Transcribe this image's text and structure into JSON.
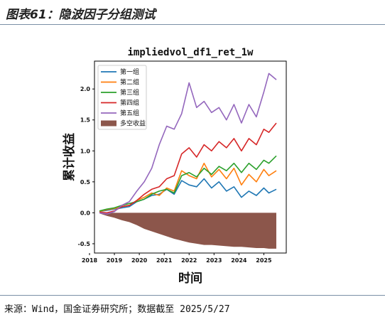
{
  "figure_title": "图表61：隐波因子分组测试",
  "source_note": "来源：Wind，国金证券研究所；数据截至 2025/5/27",
  "chart_data": {
    "type": "line",
    "title": "impliedvol_df1_ret_1w",
    "xlabel": "时间",
    "ylabel": "累计收益",
    "x_ticks": [
      "2018",
      "2019",
      "2020",
      "2021",
      "2022",
      "2023",
      "2024",
      "2025"
    ],
    "y_ticks": [
      "-0.5",
      "0.0",
      "0.5",
      "1.0",
      "1.5",
      "2.0"
    ],
    "ylim": [
      -0.65,
      2.45
    ],
    "xlim": [
      2018.2,
      2025.9
    ],
    "grid": false,
    "legend_position": "top-left",
    "x": [
      2018.4,
      2018.7,
      2019.0,
      2019.3,
      2019.6,
      2019.9,
      2020.2,
      2020.5,
      2020.8,
      2021.1,
      2021.4,
      2021.7,
      2022.0,
      2022.3,
      2022.6,
      2022.9,
      2023.2,
      2023.5,
      2023.8,
      2024.1,
      2024.4,
      2024.7,
      2025.0,
      2025.2,
      2025.5
    ],
    "series": [
      {
        "name": "第一组",
        "color": "#1f77b4",
        "values": [
          0.02,
          0.04,
          0.06,
          0.08,
          0.1,
          0.18,
          0.22,
          0.28,
          0.3,
          0.38,
          0.3,
          0.52,
          0.45,
          0.42,
          0.55,
          0.4,
          0.5,
          0.35,
          0.42,
          0.25,
          0.35,
          0.28,
          0.4,
          0.32,
          0.38
        ]
      },
      {
        "name": "第二组",
        "color": "#ff7f0e",
        "values": [
          0.02,
          0.05,
          0.07,
          0.1,
          0.12,
          0.2,
          0.25,
          0.32,
          0.28,
          0.4,
          0.35,
          0.68,
          0.6,
          0.55,
          0.8,
          0.58,
          0.7,
          0.55,
          0.72,
          0.45,
          0.62,
          0.5,
          0.7,
          0.6,
          0.68
        ]
      },
      {
        "name": "第三组",
        "color": "#2ca02c",
        "values": [
          0.03,
          0.06,
          0.08,
          0.12,
          0.15,
          0.18,
          0.22,
          0.3,
          0.35,
          0.38,
          0.32,
          0.6,
          0.65,
          0.58,
          0.72,
          0.62,
          0.75,
          0.68,
          0.8,
          0.65,
          0.8,
          0.7,
          0.85,
          0.8,
          0.92
        ]
      },
      {
        "name": "第四组",
        "color": "#d62728",
        "values": [
          0.01,
          0.0,
          0.03,
          0.1,
          0.12,
          0.2,
          0.3,
          0.38,
          0.42,
          0.55,
          0.6,
          0.95,
          1.05,
          0.9,
          1.1,
          1.0,
          1.15,
          1.05,
          1.2,
          1.0,
          1.2,
          1.1,
          1.35,
          1.3,
          1.45
        ]
      },
      {
        "name": "第五组",
        "color": "#9467bd",
        "values": [
          0.0,
          -0.02,
          0.02,
          0.12,
          0.18,
          0.35,
          0.5,
          0.72,
          1.1,
          1.4,
          1.35,
          1.6,
          2.1,
          1.7,
          1.8,
          1.62,
          1.7,
          1.5,
          1.75,
          1.45,
          1.75,
          1.55,
          1.95,
          2.25,
          2.15
        ]
      },
      {
        "name": "多空收益",
        "color": "#8c564b",
        "type": "area",
        "values": [
          -0.01,
          -0.05,
          -0.08,
          -0.12,
          -0.15,
          -0.2,
          -0.26,
          -0.3,
          -0.34,
          -0.38,
          -0.42,
          -0.45,
          -0.48,
          -0.5,
          -0.52,
          -0.52,
          -0.53,
          -0.54,
          -0.55,
          -0.55,
          -0.56,
          -0.57,
          -0.57,
          -0.58,
          -0.58
        ]
      }
    ]
  }
}
